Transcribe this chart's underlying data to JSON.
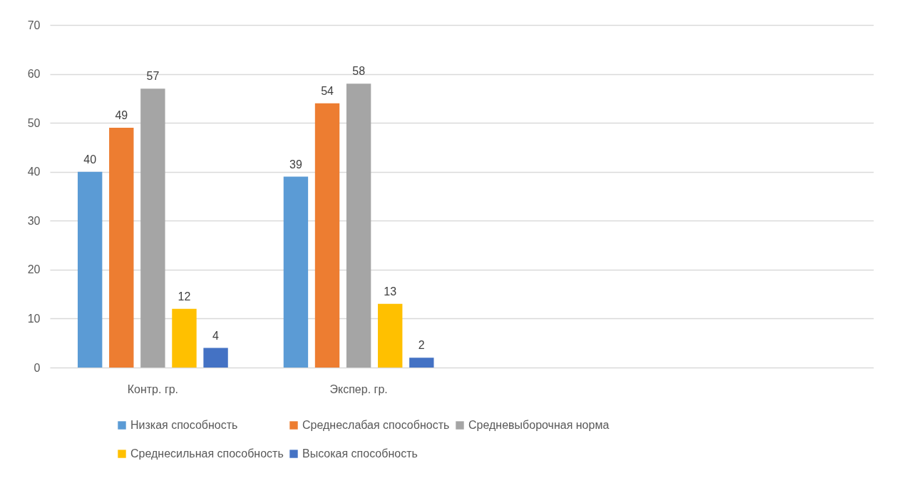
{
  "chart_data": {
    "type": "bar",
    "categories": [
      "Контр. гр.",
      "Экспер. гр.",
      null,
      null
    ],
    "series": [
      {
        "name": "Низкая способность",
        "color": "#5b9bd5",
        "values": [
          40,
          39,
          null,
          null
        ]
      },
      {
        "name": "Среднеслабая способность",
        "color": "#ed7d31",
        "values": [
          49,
          54,
          null,
          null
        ]
      },
      {
        "name": "Средневыборочная норма",
        "color": "#a5a5a5",
        "values": [
          57,
          58,
          null,
          null
        ]
      },
      {
        "name": "Среднесильная способность",
        "color": "#ffc000",
        "values": [
          12,
          13,
          null,
          null
        ]
      },
      {
        "name": "Высокая способность",
        "color": "#4472c4",
        "values": [
          4,
          2,
          null,
          null
        ]
      }
    ],
    "ylim": [
      0,
      70
    ],
    "yticks": [
      0,
      10,
      20,
      30,
      40,
      50,
      60,
      70
    ],
    "grid": "y",
    "legend": "bottom",
    "data_labels": true
  }
}
